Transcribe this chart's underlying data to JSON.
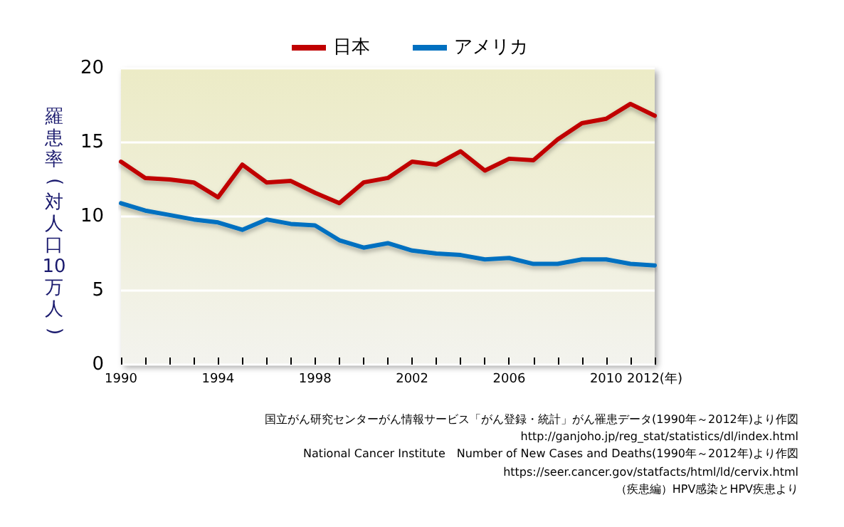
{
  "chart_data": {
    "type": "line",
    "ylabel": "羅患率(対人口10万人)",
    "x": [
      1990,
      1991,
      1992,
      1993,
      1994,
      1995,
      1996,
      1997,
      1998,
      1999,
      2000,
      2001,
      2002,
      2003,
      2004,
      2005,
      2006,
      2007,
      2008,
      2009,
      2010,
      2011,
      2012
    ],
    "series": [
      {
        "name": "日本",
        "color": "#c00000",
        "values": [
          13.7,
          12.6,
          12.5,
          12.3,
          11.3,
          13.5,
          12.3,
          12.4,
          11.6,
          10.9,
          12.3,
          12.6,
          13.7,
          13.5,
          14.4,
          13.1,
          13.9,
          13.8,
          15.2,
          16.3,
          16.6,
          17.6,
          16.8
        ]
      },
      {
        "name": "アメリカ",
        "color": "#0070c0",
        "values": [
          10.9,
          10.4,
          10.1,
          9.8,
          9.6,
          9.1,
          9.8,
          9.5,
          9.4,
          8.4,
          7.9,
          8.2,
          7.7,
          7.5,
          7.4,
          7.1,
          7.2,
          6.8,
          6.8,
          7.1,
          7.1,
          6.8,
          6.7
        ]
      }
    ],
    "xlim": [
      1990,
      2012
    ],
    "xticks": [
      1990,
      {
        "value": 1991,
        "label": null
      },
      {
        "value": 1992,
        "label": null
      },
      {
        "value": 1993,
        "label": null
      },
      1994,
      {
        "value": 1995,
        "label": null
      },
      {
        "value": 1996,
        "label": null
      },
      {
        "value": 1997,
        "label": null
      },
      1998,
      {
        "value": 1999,
        "label": null
      },
      {
        "value": 2000,
        "label": null
      },
      {
        "value": 2001,
        "label": null
      },
      2002,
      {
        "value": 2003,
        "label": null
      },
      {
        "value": 2004,
        "label": null
      },
      {
        "value": 2005,
        "label": null
      },
      2006,
      {
        "value": 2007,
        "label": null
      },
      {
        "value": 2008,
        "label": null
      },
      {
        "value": 2009,
        "label": null
      },
      2010,
      {
        "value": 2011,
        "label": null
      },
      {
        "value": 2012,
        "label": "2012(年)"
      }
    ],
    "ylim": [
      0,
      20
    ],
    "yticks": [
      0,
      5,
      10,
      15,
      20
    ],
    "grid": "y",
    "legend": "top",
    "marker": "none",
    "line_style": "solid",
    "annotations": [
      "国立がん研究センターがん情報サービス「がん登録・統計」がん罹患データ(1990年～2012年)より作図",
      "http://ganjoho.jp/reg_stat/statistics/dl/index.html",
      "National Cancer Institute　Number of New Cases and Deaths(1990年～2012年)より作図",
      "https://seer.cancer.gov/statfacts/html/ld/cervix.html",
      "（疾患編）HPV感染とHPV疾患より"
    ]
  }
}
